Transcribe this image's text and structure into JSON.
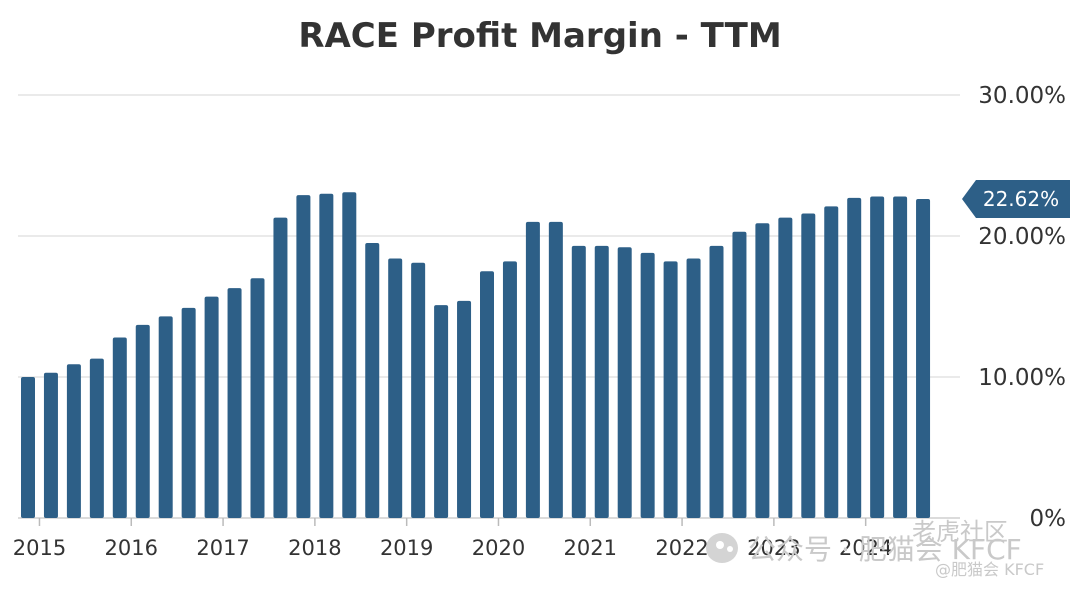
{
  "chart_data": {
    "type": "bar",
    "title": "RACE Profit Margin - TTM",
    "xlabel": "",
    "ylabel": "",
    "ylim": [
      0,
      30
    ],
    "yticks": [
      "0%",
      "10.00%",
      "20.00%",
      "30.00%"
    ],
    "ytick_values": [
      0,
      10,
      20,
      30
    ],
    "y_axis_side": "right",
    "grid": true,
    "color": "#2d5f87",
    "xticks": [
      "2015",
      "2016",
      "2017",
      "2018",
      "2019",
      "2020",
      "2021",
      "2022",
      "2023",
      "2024"
    ],
    "xtick_bar_index": [
      0.5,
      4.5,
      8.5,
      12.5,
      16.5,
      20.5,
      24.5,
      28.5,
      32.5,
      36.5
    ],
    "values": [
      10.0,
      10.3,
      10.9,
      11.3,
      12.8,
      13.7,
      14.3,
      14.9,
      15.7,
      16.3,
      17.0,
      21.3,
      22.9,
      23.0,
      23.1,
      19.5,
      18.4,
      18.1,
      15.1,
      15.4,
      17.5,
      18.2,
      21.0,
      21.0,
      19.3,
      19.3,
      19.2,
      18.8,
      18.2,
      18.4,
      19.3,
      20.3,
      20.9,
      21.3,
      21.6,
      22.1,
      22.7,
      22.8,
      22.8,
      22.62
    ],
    "latest_label": "22.62%",
    "latest_value": 22.62
  },
  "watermark": {
    "main": "公众号 · 肥猫会 KFCF",
    "sub": "老虎社区",
    "small": "@肥猫会 KFCF"
  }
}
